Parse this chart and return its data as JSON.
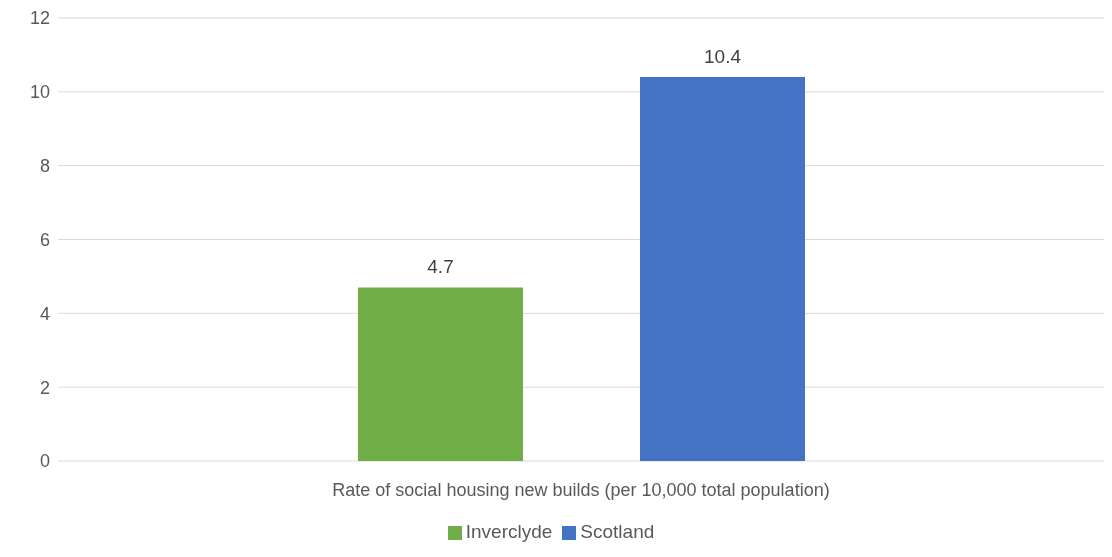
{
  "chart_data": {
    "type": "bar",
    "categories": [
      "Rate of social housing  new builds (per 10,000 total population)"
    ],
    "series": [
      {
        "name": "Inverclyde",
        "color": "#70ad47",
        "values": [
          4.7
        ]
      },
      {
        "name": "Scotland",
        "color": "#4472c4",
        "values": [
          10.4
        ]
      }
    ],
    "ylim": [
      0,
      12
    ],
    "yticks": [
      0,
      2,
      4,
      6,
      8,
      10,
      12
    ],
    "grid": "y",
    "data_labels": true,
    "legend": "bottom"
  }
}
